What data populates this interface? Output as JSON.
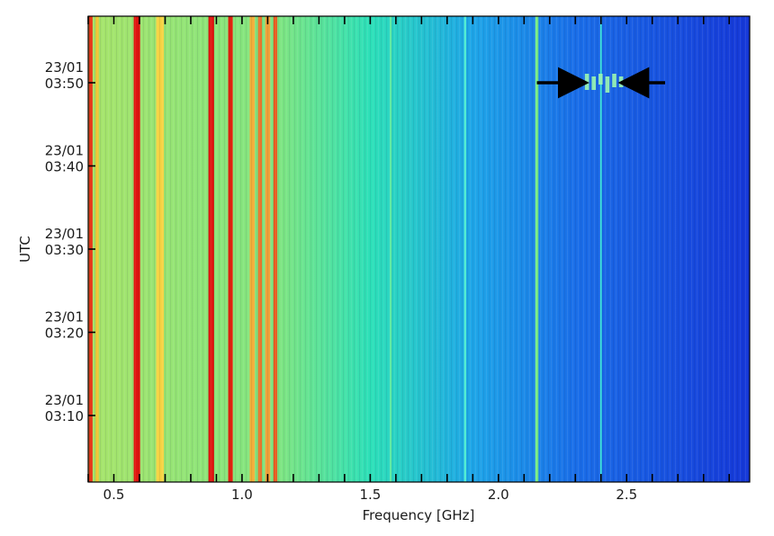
{
  "chart_data": {
    "type": "heatmap",
    "title": "",
    "xlabel": "Frequency [GHz]",
    "ylabel": "UTC",
    "xlim": [
      0.4,
      2.98
    ],
    "ylim_minutes_utc": [
      "03:02",
      "03:58"
    ],
    "x_ticks": [
      {
        "value": 0.5,
        "label": "0.5"
      },
      {
        "value": 1.0,
        "label": "1.0"
      },
      {
        "value": 1.5,
        "label": "1.5"
      },
      {
        "value": 2.0,
        "label": "2.0"
      },
      {
        "value": 2.5,
        "label": "2.5"
      }
    ],
    "y_ticks": [
      {
        "time": "03:50",
        "line1": "23/01",
        "line2": "03:50"
      },
      {
        "time": "03:40",
        "line1": "23/01",
        "line2": "03:40"
      },
      {
        "time": "03:30",
        "line1": "23/01",
        "line2": "03:30"
      },
      {
        "time": "03:20",
        "line1": "23/01",
        "line2": "03:20"
      },
      {
        "time": "03:10",
        "line1": "23/01",
        "line2": "03:10"
      }
    ],
    "colormap": "jet",
    "colormap_stops": [
      "#00008f",
      "#0000ff",
      "#0080ff",
      "#00ffff",
      "#80ff80",
      "#ffff00",
      "#ff8000",
      "#ff0000",
      "#800000"
    ],
    "background_gradient": [
      {
        "freq": 0.4,
        "color": "#a8e46a"
      },
      {
        "freq": 1.15,
        "color": "#7ee582"
      },
      {
        "freq": 1.5,
        "color": "#2de0b8"
      },
      {
        "freq": 1.9,
        "color": "#1ea6e8"
      },
      {
        "freq": 2.3,
        "color": "#1a6ee8"
      },
      {
        "freq": 2.98,
        "color": "#1638d8"
      }
    ],
    "rfi_bands": [
      {
        "freq": 0.41,
        "width": 0.015,
        "color": "#e53a17"
      },
      {
        "freq": 0.435,
        "width": 0.012,
        "color": "#f0c431"
      },
      {
        "freq": 0.59,
        "width": 0.025,
        "color": "#e0150f"
      },
      {
        "freq": 0.68,
        "width": 0.03,
        "color": "#f5d342"
      },
      {
        "freq": 0.88,
        "width": 0.022,
        "color": "#e0150f"
      },
      {
        "freq": 0.955,
        "width": 0.018,
        "color": "#e2220f"
      },
      {
        "freq": 1.04,
        "width": 0.02,
        "color": "#f2b03a"
      },
      {
        "freq": 1.07,
        "width": 0.015,
        "color": "#e8742a"
      },
      {
        "freq": 1.1,
        "width": 0.02,
        "color": "#f0a23a"
      },
      {
        "freq": 1.13,
        "width": 0.015,
        "color": "#e65a20"
      },
      {
        "freq": 1.58,
        "width": 0.006,
        "color": "#6ef0a0"
      },
      {
        "freq": 1.87,
        "width": 0.008,
        "color": "#4ff0d0"
      },
      {
        "freq": 2.15,
        "width": 0.012,
        "color": "#7cf08a"
      },
      {
        "freq": 2.4,
        "width": 0.006,
        "color": "#3ce6d8"
      }
    ],
    "burst": {
      "freq_start": 2.33,
      "freq_end": 2.49,
      "time": "03:50",
      "color": "#9cf7b0"
    },
    "annotations": [
      {
        "type": "arrow",
        "direction": "right",
        "from_freq": 2.15,
        "to_freq": 2.33,
        "time": "03:50"
      },
      {
        "type": "arrow",
        "direction": "left",
        "from_freq": 2.65,
        "to_freq": 2.49,
        "time": "03:50"
      }
    ],
    "grid": false,
    "legend": "none"
  }
}
